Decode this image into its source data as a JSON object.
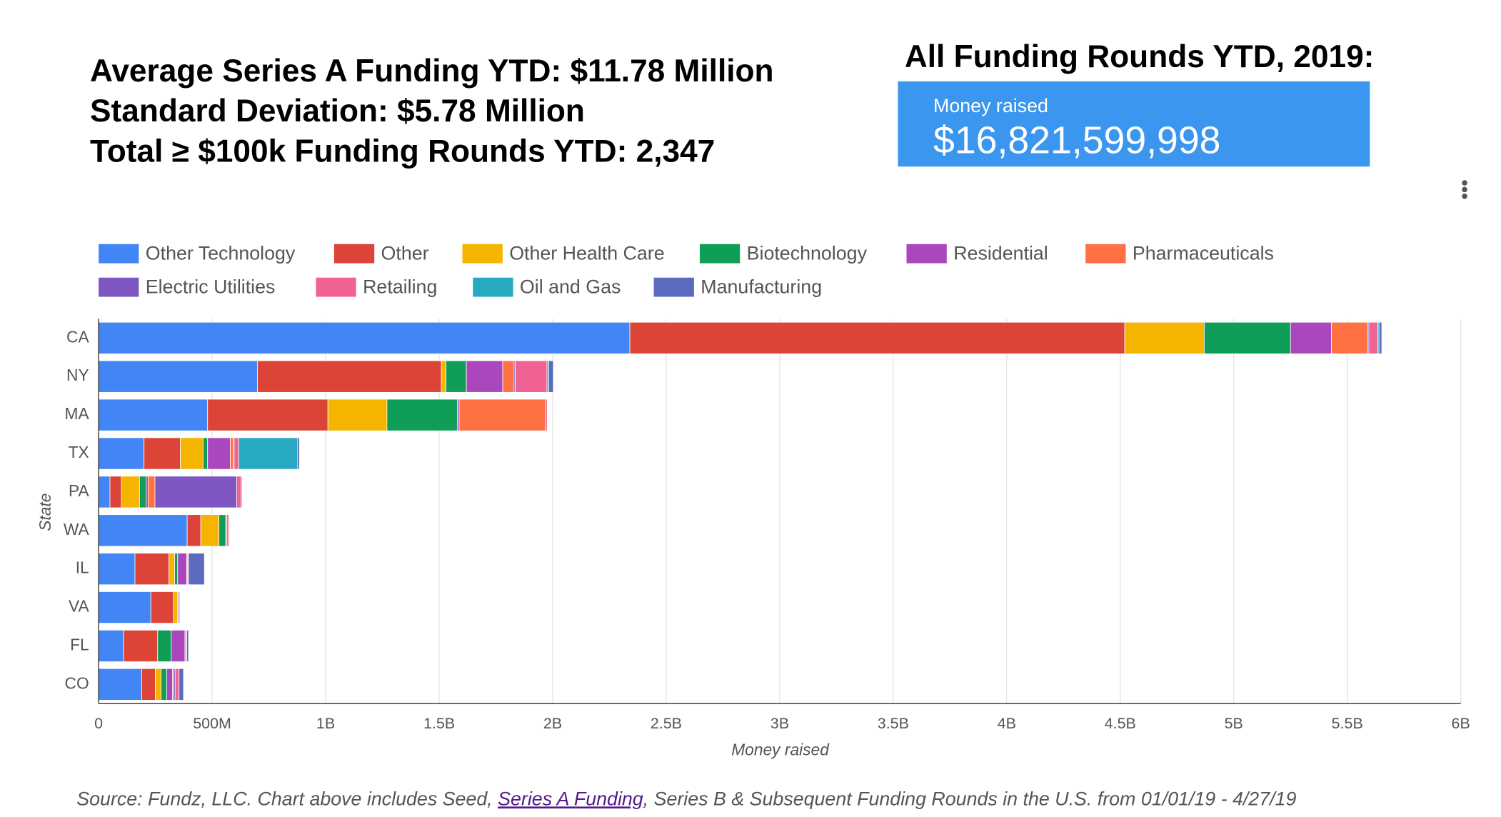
{
  "header": {
    "lines": [
      "Average Series A Funding YTD: $11.78 Million",
      "Standard Deviation: $5.78 Million",
      "Total ≥ $100k Funding Rounds YTD: 2,347"
    ]
  },
  "scorecard": {
    "title": "All Funding Rounds YTD, 2019:",
    "label": "Money raised",
    "value": "$16,821,599,998"
  },
  "chart_data": {
    "type": "stacked-bar-horizontal",
    "x_label": "Money raised",
    "y_label": "State",
    "categories": [
      "CA",
      "NY",
      "MA",
      "TX",
      "PA",
      "WA",
      "IL",
      "VA",
      "FL",
      "CO"
    ],
    "xlim": [
      0,
      6000000000
    ],
    "xticks": [
      0,
      {
        "value": 500000000,
        "label": "500M"
      },
      {
        "value": 1000000000,
        "label": "1B"
      },
      {
        "value": 1500000000,
        "label": "1.5B"
      },
      {
        "value": 2000000000,
        "label": "2B"
      },
      {
        "value": 2500000000,
        "label": "2.5B"
      },
      {
        "value": 3000000000,
        "label": "3B"
      },
      {
        "value": 3500000000,
        "label": "3.5B"
      },
      {
        "value": 4000000000,
        "label": "4B"
      },
      {
        "value": 4500000000,
        "label": "4.5B"
      },
      {
        "value": 5000000000,
        "label": "5B"
      },
      {
        "value": 5500000000,
        "label": "5.5B"
      },
      {
        "value": 6000000000,
        "label": "6B"
      }
    ],
    "grid": true,
    "legend": "top",
    "series": [
      {
        "name": "Other Technology",
        "color": "#4285f4",
        "values": [
          2340000000,
          700000000,
          480000000,
          200000000,
          50000000,
          390000000,
          160000000,
          230000000,
          110000000,
          190000000
        ]
      },
      {
        "name": "Other",
        "color": "#db4437",
        "values": [
          2180000000,
          810000000,
          530000000,
          160000000,
          50000000,
          60000000,
          150000000,
          100000000,
          150000000,
          60000000
        ]
      },
      {
        "name": "Other Health Care",
        "color": "#f4b400",
        "values": [
          350000000,
          20000000,
          260000000,
          100000000,
          80000000,
          80000000,
          25000000,
          17000000,
          0,
          25000000
        ]
      },
      {
        "name": "Biotechnology",
        "color": "#0f9d58",
        "values": [
          380000000,
          90000000,
          310000000,
          20000000,
          30000000,
          30000000,
          13000000,
          4000000,
          60000000,
          25000000
        ]
      },
      {
        "name": "Residential",
        "color": "#ab47bc",
        "values": [
          180000000,
          160000000,
          8000000,
          100000000,
          8000000,
          4000000,
          40000000,
          4000000,
          60000000,
          25000000
        ]
      },
      {
        "name": "Pharmaceuticals",
        "color": "#ff7043",
        "values": [
          160000000,
          50000000,
          380000000,
          13000000,
          30000000,
          8000000,
          4000000,
          4000000,
          0,
          4000000
        ]
      },
      {
        "name": "Electric Utilities",
        "color": "#7e57c2",
        "values": [
          5000000,
          5000000,
          0,
          4000000,
          360000000,
          0,
          0,
          0,
          4000000,
          8000000
        ]
      },
      {
        "name": "Retailing",
        "color": "#f06292",
        "values": [
          40000000,
          140000000,
          8000000,
          20000000,
          20000000,
          4000000,
          4000000,
          0,
          4000000,
          17000000
        ]
      },
      {
        "name": "Oil and Gas",
        "color": "#26a9c1",
        "values": [
          5000000,
          8000000,
          0,
          260000000,
          0,
          0,
          0,
          0,
          0,
          0
        ]
      },
      {
        "name": "Manufacturing",
        "color": "#5c6bc0",
        "values": [
          12000000,
          20000000,
          2000000,
          8000000,
          4000000,
          0,
          70000000,
          0,
          8000000,
          20000000
        ]
      }
    ]
  },
  "footnote": {
    "prefix": "Source: Fundz, LLC. Chart above includes Seed, ",
    "link": "Series A Funding",
    "suffix": ", Series B & Subsequent Funding Rounds in the U.S. from 01/01/19 - 4/27/19"
  }
}
